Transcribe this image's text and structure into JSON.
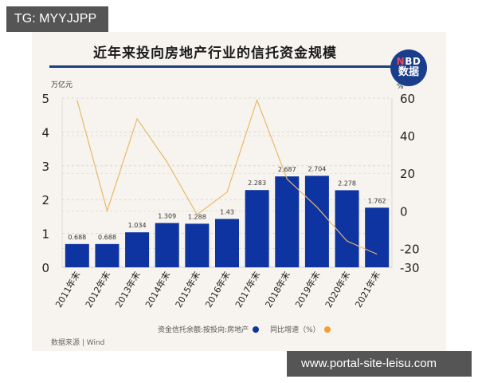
{
  "overlay": {
    "top_left_tag": "TG: MYYJJPP",
    "bottom_right_tag": "www.portal-site-leisu.com"
  },
  "header": {
    "title": "近年来投向房地产行业的信托资金规模",
    "logo_line1_accent": "N",
    "logo_line1_rest": "BD",
    "logo_line2": "数据"
  },
  "legend": {
    "bar_label": "资金信托余额:按投向:房地产",
    "line_label": "同比增速（%）"
  },
  "footer": {
    "source": "数据来源 | Wind"
  },
  "colors": {
    "bar": "#0d34a0",
    "line": "#e8b86a",
    "background": "#f7f4ef",
    "title_rule": "#1d3f7e",
    "legend_line_dot": "#f0a030"
  },
  "chart_data": {
    "type": "bar",
    "title": "近年来投向房地产行业的信托资金规模",
    "categories": [
      "2011年末",
      "2012年末",
      "2013年末",
      "2014年末",
      "2015年末",
      "2016年末",
      "2017年末",
      "2018年末",
      "2019年末",
      "2020年末",
      "2021年末"
    ],
    "series": [
      {
        "name": "资金信托余额:按投向:房地产",
        "type": "bar",
        "axis": "left",
        "values": [
          0.688,
          0.688,
          1.034,
          1.309,
          1.288,
          1.43,
          2.283,
          2.687,
          2.704,
          2.278,
          1.762
        ],
        "labels": [
          "0.688",
          "0.688",
          "1.034",
          "1.309",
          "1.288",
          "1.43",
          "2.283",
          "2.687",
          "2.704",
          "2.278",
          "1.762"
        ]
      },
      {
        "name": "同比增速（%）",
        "type": "line",
        "axis": "right",
        "values": [
          59,
          0,
          49,
          26,
          -2,
          10,
          59,
          17,
          2,
          -16,
          -23
        ]
      }
    ],
    "ylabel_left": "万亿元",
    "ylabel_right": "%",
    "ylim_left": [
      0,
      5
    ],
    "ylim_right": [
      -30,
      60
    ],
    "yticks_left": [
      "0",
      "1",
      "2",
      "3",
      "4",
      "5"
    ],
    "yticks_right": [
      "-30",
      "-20",
      "0",
      "20",
      "40",
      "60"
    ],
    "grid": "horizontal dashed",
    "legend_position": "bottom",
    "source": "数据来源 | Wind"
  }
}
